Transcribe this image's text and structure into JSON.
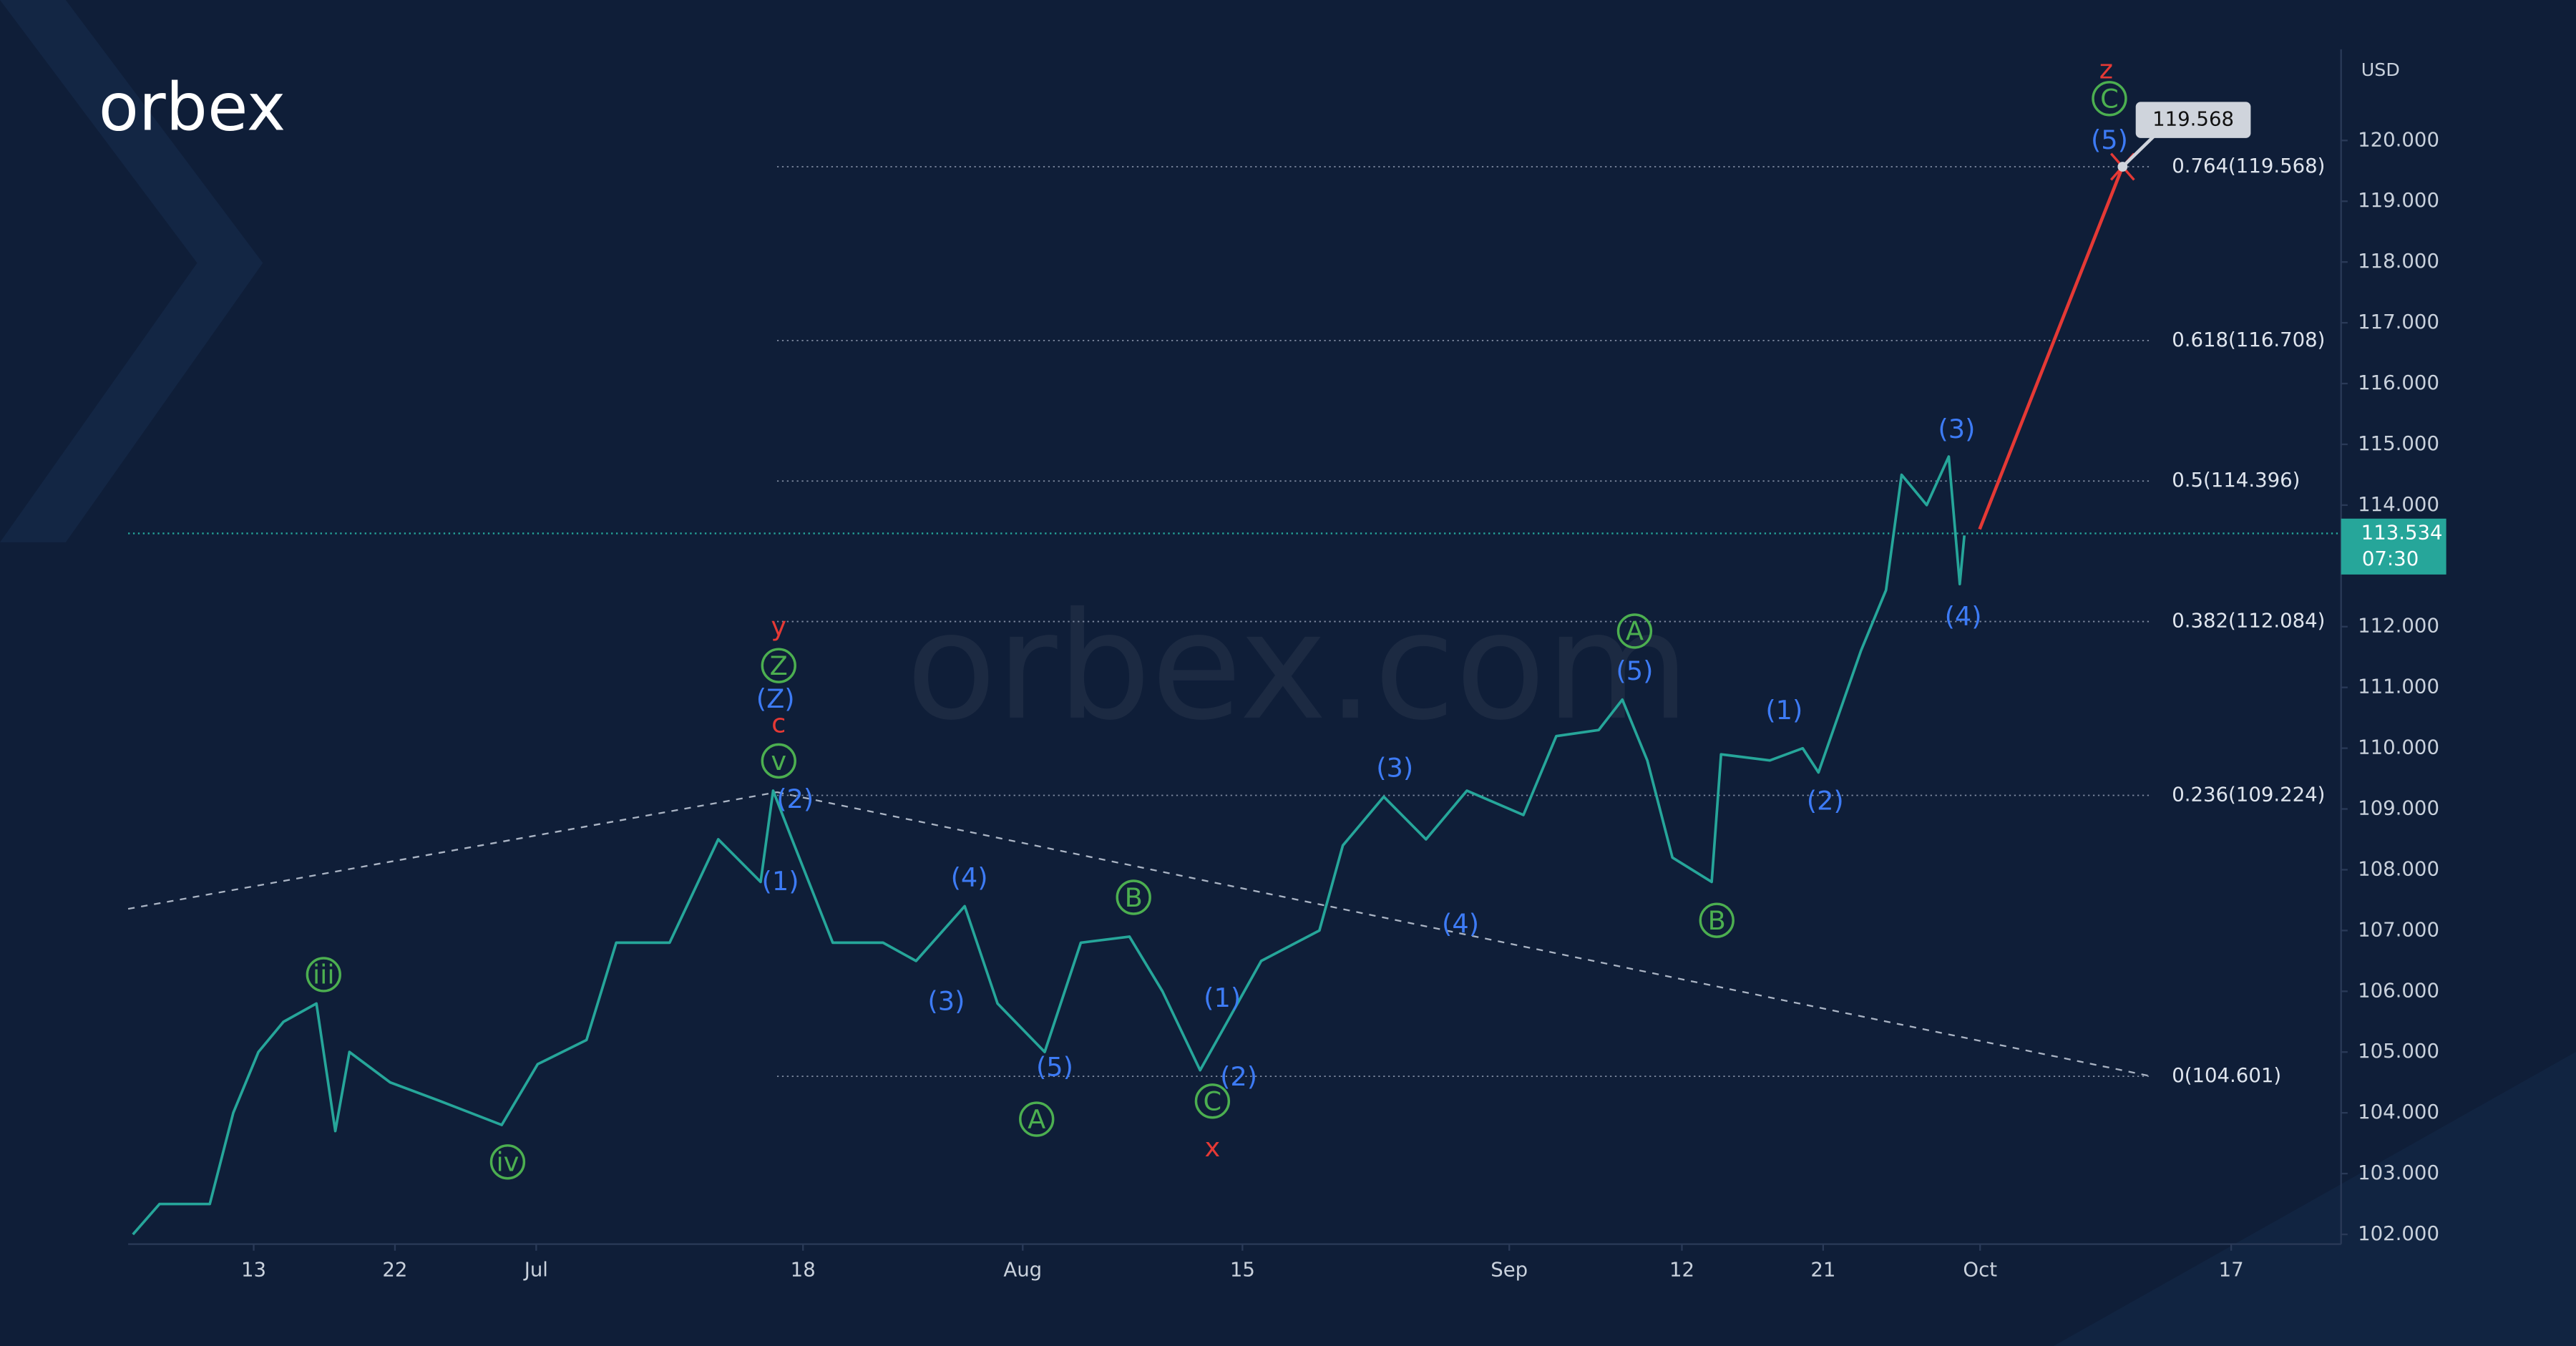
{
  "brand": "orbex",
  "watermark": "orbex.com",
  "chart_data": {
    "type": "line",
    "currency": "USD",
    "color": "#26a69a",
    "x": [
      5.3,
      7.0,
      10.2,
      11.7,
      13.3,
      14.9,
      17.0,
      18.2,
      19.1,
      21.7,
      24.8,
      28.8,
      31.1,
      34.2,
      36.1,
      39.5,
      42.6,
      45.3,
      46.1,
      47.3,
      49.9,
      53.1,
      55.2,
      58.3,
      60.4,
      63.4,
      65.7,
      68.8,
      70.9,
      73.3,
      74.6,
      77.2,
      80.9,
      82.4,
      85.0,
      87.7,
      90.3,
      93.9,
      96.0,
      98.7,
      100.2,
      101.8,
      103.4,
      105.9,
      106.5,
      109.6,
      111.7,
      112.7,
      115.4,
      117.0,
      118.0,
      119.6,
      121.0,
      121.7,
      122.0
    ],
    "values": [
      102.0,
      102.5,
      102.5,
      104.0,
      105.0,
      105.5,
      105.8,
      103.7,
      105.0,
      104.5,
      104.2,
      103.8,
      104.8,
      105.2,
      106.8,
      106.8,
      108.5,
      107.8,
      109.3,
      108.5,
      106.8,
      106.8,
      106.5,
      107.4,
      105.8,
      105.0,
      106.8,
      106.9,
      106.0,
      104.7,
      105.3,
      106.5,
      107.0,
      108.4,
      109.2,
      108.5,
      109.3,
      108.9,
      110.2,
      110.3,
      110.8,
      109.8,
      108.2,
      107.8,
      109.9,
      109.8,
      110.0,
      109.6,
      111.6,
      112.6,
      114.5,
      114.0,
      114.8,
      112.7,
      113.5
    ],
    "xlim": [
      5,
      146
    ],
    "xticks": [
      13,
      22,
      {
        "value": 31,
        "label": "Jul"
      },
      {
        "value": 48,
        "label": "18"
      },
      {
        "value": 62,
        "label": "Aug"
      },
      {
        "value": 76,
        "label": "15"
      },
      {
        "value": 93,
        "label": "Sep"
      },
      {
        "value": 104,
        "label": "12"
      },
      {
        "value": 113,
        "label": "21"
      },
      {
        "value": 123,
        "label": "Oct"
      },
      {
        "value": 139,
        "label": "17"
      }
    ],
    "ylim": [
      101.84,
      121.5
    ],
    "yticks": [
      {
        "value": 102,
        "label": "102.000"
      },
      {
        "value": 103,
        "label": "103.000"
      },
      {
        "value": 104,
        "label": "104.000"
      },
      {
        "value": 105,
        "label": "105.000"
      },
      {
        "value": 106,
        "label": "106.000"
      },
      {
        "value": 107,
        "label": "107.000"
      },
      {
        "value": 108,
        "label": "108.000"
      },
      {
        "value": 109,
        "label": "109.000"
      },
      {
        "value": 110,
        "label": "110.000"
      },
      {
        "value": 111,
        "label": "111.000"
      },
      {
        "value": 112,
        "label": "112.000"
      },
      {
        "value": 113,
        "label": "113.000"
      },
      {
        "value": 114,
        "label": "114.000"
      },
      {
        "value": 115,
        "label": "115.000"
      },
      {
        "value": 116,
        "label": "116.000"
      },
      {
        "value": 117,
        "label": "117.000"
      },
      {
        "value": 118,
        "label": "118.000"
      },
      {
        "value": 119,
        "label": "119.000"
      },
      {
        "value": 120,
        "label": "120.000"
      }
    ],
    "last_price": 113.534,
    "countdown": "07:30",
    "target": 119.568,
    "fib_levels": [
      {
        "value": 119.568,
        "label": "0.764(119.568)"
      },
      {
        "value": 116.708,
        "label": "0.618(116.708)"
      },
      {
        "value": 114.396,
        "label": "0.5(114.396)"
      },
      {
        "value": 112.084,
        "label": "0.382(112.084)"
      },
      {
        "value": 109.224,
        "label": "0.236(109.224)"
      },
      {
        "value": 104.601,
        "label": "0(104.601)"
      }
    ],
    "annotations": [
      {
        "text": "z",
        "color": "#e53935"
      },
      {
        "text": "y",
        "color": "#e53935"
      },
      {
        "text": "c",
        "color": "#e53935"
      },
      {
        "text": "x",
        "color": "#e53935"
      },
      {
        "text": "C",
        "color": "#4caf50",
        "circled": true
      },
      {
        "text": "Z",
        "color": "#4caf50",
        "circled": true
      },
      {
        "text": "v",
        "color": "#4caf50",
        "circled": true
      },
      {
        "text": "iii",
        "color": "#4caf50",
        "circled": true
      },
      {
        "text": "iv",
        "color": "#4caf50",
        "circled": true
      },
      {
        "text": "A",
        "color": "#4caf50",
        "circled": true
      },
      {
        "text": "B",
        "color": "#4caf50",
        "circled": true
      },
      {
        "text": "C",
        "color": "#4caf50",
        "circled": true
      },
      {
        "text": "A",
        "color": "#4caf50",
        "circled": true
      },
      {
        "text": "B",
        "color": "#4caf50",
        "circled": true
      },
      {
        "text": "(5)",
        "color": "#3d7bf5"
      },
      {
        "text": "(3)",
        "color": "#3d7bf5"
      },
      {
        "text": "(4)",
        "color": "#3d7bf5"
      },
      {
        "text": "(Z)",
        "color": "#3d7bf5"
      },
      {
        "text": "(2)",
        "color": "#3d7bf5"
      },
      {
        "text": "(1)",
        "color": "#3d7bf5"
      },
      {
        "text": "(4)",
        "color": "#3d7bf5"
      },
      {
        "text": "(3)",
        "color": "#3d7bf5"
      },
      {
        "text": "(5)",
        "color": "#3d7bf5"
      },
      {
        "text": "(1)",
        "color": "#3d7bf5"
      },
      {
        "text": "(2)",
        "color": "#3d7bf5"
      },
      {
        "text": "(3)",
        "color": "#3d7bf5"
      },
      {
        "text": "(4)",
        "color": "#3d7bf5"
      },
      {
        "text": "(5)",
        "color": "#3d7bf5"
      },
      {
        "text": "(1)",
        "color": "#3d7bf5"
      },
      {
        "text": "(2)",
        "color": "#3d7bf5"
      }
    ]
  }
}
